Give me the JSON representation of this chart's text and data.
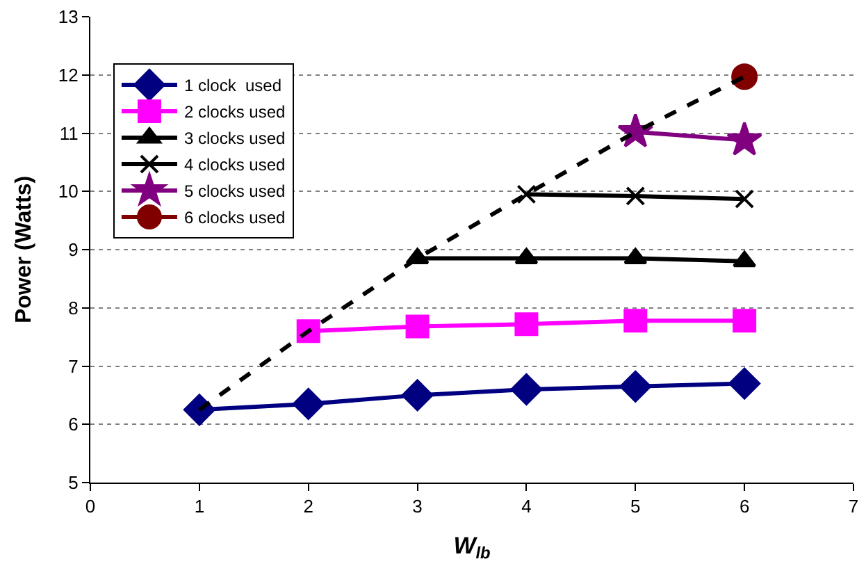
{
  "chart_data": {
    "type": "line",
    "xlabel": "W$_{lb}$",
    "ylabel": "Power (Watts)",
    "xlim": [
      0,
      7
    ],
    "xticks": [
      0,
      1,
      2,
      3,
      4,
      5,
      6,
      7
    ],
    "ylim": [
      5,
      13
    ],
    "yticks": [
      5,
      6,
      7,
      8,
      9,
      10,
      11,
      12,
      13
    ],
    "grid": "y",
    "legend": "top left",
    "series": [
      {
        "name": "1 clock  used",
        "color": "#000080",
        "marker": "diamond",
        "x": [
          1,
          2,
          3,
          4,
          5,
          6
        ],
        "values": [
          6.25,
          6.35,
          6.5,
          6.6,
          6.65,
          6.7
        ]
      },
      {
        "name": "2 clocks used",
        "color": "#ff00ff",
        "marker": "square",
        "x": [
          2,
          3,
          4,
          5,
          6
        ],
        "values": [
          7.6,
          7.68,
          7.72,
          7.78,
          7.78
        ]
      },
      {
        "name": "3 clocks used",
        "color": "#000000",
        "marker": "triangle",
        "x": [
          3,
          4,
          5,
          6
        ],
        "values": [
          8.85,
          8.85,
          8.85,
          8.8
        ]
      },
      {
        "name": "4 clocks used",
        "color": "#000000",
        "marker": "cross",
        "x": [
          4,
          5,
          6
        ],
        "values": [
          9.95,
          9.92,
          9.87
        ]
      },
      {
        "name": "5 clocks used",
        "color": "#800080",
        "marker": "star",
        "x": [
          5,
          6
        ],
        "values": [
          11.02,
          10.88
        ]
      },
      {
        "name": "6 clocks used",
        "color": "#800000",
        "marker": "circle",
        "x": [
          6
        ],
        "values": [
          11.97
        ]
      },
      {
        "color": "#000000",
        "marker": "none",
        "line_style": "dashed",
        "x": [
          1,
          2,
          3,
          4,
          5,
          6
        ],
        "values": [
          6.25,
          7.6,
          8.85,
          9.95,
          11.02,
          11.97
        ]
      }
    ]
  }
}
